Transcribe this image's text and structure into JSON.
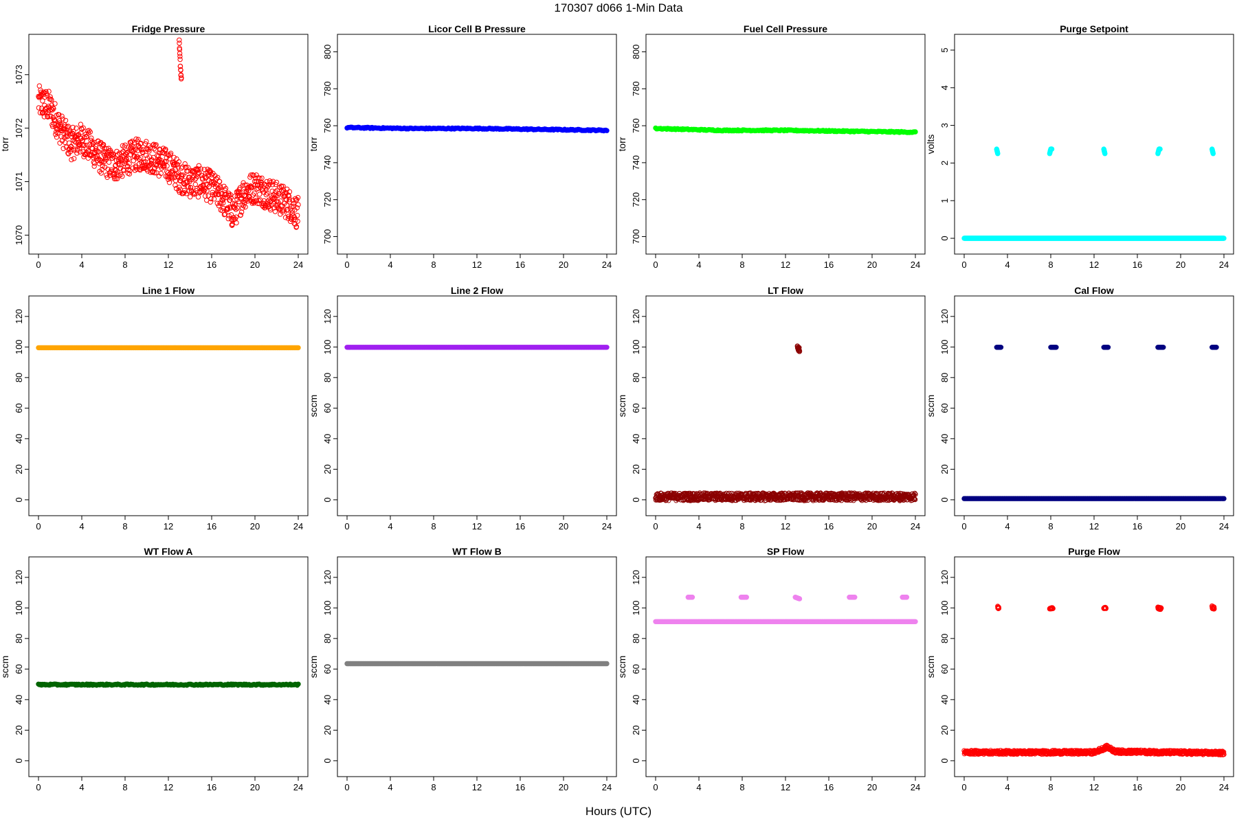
{
  "page": {
    "title": "170307   d066   1-Min Data",
    "xlabel": "Hours (UTC)"
  },
  "chart_data": [
    {
      "type": "scatter",
      "title": "Fridge Pressure",
      "xlabel": "",
      "ylabel": "torr",
      "color": "#FF0000",
      "marker": "open-circle",
      "xlim": [
        0,
        24
      ],
      "ylim": [
        1069.8,
        1073.6
      ],
      "xticks": [
        0,
        4,
        8,
        12,
        16,
        20,
        24
      ],
      "yticks": [
        1070,
        1071,
        1072,
        1073
      ],
      "series": [
        {
          "points": [
            [
              0,
              1072.5
            ],
            [
              1,
              1072.4
            ],
            [
              2,
              1072.0
            ],
            [
              3,
              1071.7
            ],
            [
              4,
              1071.8
            ],
            [
              5,
              1071.6
            ],
            [
              6,
              1071.4
            ],
            [
              7,
              1071.3
            ],
            [
              8,
              1071.4
            ],
            [
              9,
              1071.5
            ],
            [
              10,
              1071.5
            ],
            [
              11,
              1071.4
            ],
            [
              12,
              1071.3
            ],
            [
              13,
              1071.1
            ],
            [
              14,
              1071.0
            ],
            [
              15,
              1071.0
            ],
            [
              16,
              1070.9
            ],
            [
              17,
              1070.7
            ],
            [
              18,
              1070.4
            ],
            [
              19,
              1070.8
            ],
            [
              20,
              1070.9
            ],
            [
              21,
              1070.8
            ],
            [
              22,
              1070.7
            ],
            [
              23,
              1070.6
            ],
            [
              24,
              1070.4
            ]
          ],
          "spread": 0.3
        },
        {
          "points": [
            [
              13.0,
              1073.6
            ],
            [
              13.1,
              1073.2
            ],
            [
              13.2,
              1072.9
            ]
          ],
          "spread": 0.05
        }
      ]
    },
    {
      "type": "scatter",
      "title": "Licor Cell B Pressure",
      "xlabel": "",
      "ylabel": "torr",
      "color": "#0000FF",
      "marker": "filled-circle",
      "xlim": [
        0,
        24
      ],
      "ylim": [
        695,
        805
      ],
      "xticks": [
        0,
        4,
        8,
        12,
        16,
        20,
        24
      ],
      "yticks": [
        700,
        720,
        740,
        760,
        780,
        800
      ],
      "series": [
        {
          "points": [
            [
              0,
              759
            ],
            [
              6,
              758.5
            ],
            [
              12,
              758.5
            ],
            [
              18,
              758
            ],
            [
              24,
              757.5
            ]
          ],
          "spread": 0.3
        }
      ]
    },
    {
      "type": "scatter",
      "title": "Fuel Cell Pressure",
      "xlabel": "",
      "ylabel": "torr",
      "color": "#00FF00",
      "marker": "filled-circle",
      "xlim": [
        0,
        24
      ],
      "ylim": [
        695,
        805
      ],
      "xticks": [
        0,
        4,
        8,
        12,
        16,
        20,
        24
      ],
      "yticks": [
        700,
        720,
        740,
        760,
        780,
        800
      ],
      "series": [
        {
          "points": [
            [
              0,
              758.5
            ],
            [
              6,
              757.5
            ],
            [
              12,
              757.5
            ],
            [
              18,
              757
            ],
            [
              24,
              756.5
            ]
          ],
          "spread": 0.3
        }
      ]
    },
    {
      "type": "scatter",
      "title": "Purge Setpoint",
      "xlabel": "",
      "ylabel": "volts",
      "color": "#00FFFF",
      "marker": "open-circle",
      "xlim": [
        0,
        24
      ],
      "ylim": [
        -0.2,
        5.2
      ],
      "xticks": [
        0,
        4,
        8,
        12,
        16,
        20,
        24
      ],
      "yticks": [
        0,
        1,
        2,
        3,
        4,
        5
      ],
      "series": [
        {
          "points": [
            [
              0,
              0
            ],
            [
              24,
              0
            ]
          ],
          "spread": 0
        },
        {
          "points": [
            [
              3.0,
              2.37
            ],
            [
              3.1,
              2.25
            ]
          ],
          "spread": 0
        },
        {
          "points": [
            [
              7.9,
              2.25
            ],
            [
              8.0,
              2.37
            ],
            [
              8.1,
              2.37
            ]
          ],
          "spread": 0
        },
        {
          "points": [
            [
              12.9,
              2.37
            ],
            [
              13.0,
              2.25
            ]
          ],
          "spread": 0
        },
        {
          "points": [
            [
              17.9,
              2.25
            ],
            [
              18.0,
              2.37
            ],
            [
              18.1,
              2.37
            ]
          ],
          "spread": 0
        },
        {
          "points": [
            [
              22.9,
              2.37
            ],
            [
              23.0,
              2.25
            ]
          ],
          "spread": 0
        }
      ]
    },
    {
      "type": "scatter",
      "title": "Line 1 Flow",
      "xlabel": "",
      "ylabel": "",
      "color": "#FFA500",
      "marker": "filled-circle",
      "xlim": [
        0,
        24
      ],
      "ylim": [
        -5,
        128
      ],
      "xticks": [
        0,
        4,
        8,
        12,
        16,
        20,
        24
      ],
      "yticks": [
        0,
        20,
        40,
        60,
        80,
        100,
        120
      ],
      "series": [
        {
          "points": [
            [
              0,
              99.5
            ],
            [
              24,
              99.5
            ]
          ],
          "spread": 0
        }
      ]
    },
    {
      "type": "scatter",
      "title": "Line 2 Flow",
      "xlabel": "",
      "ylabel": "sccm",
      "color": "#A020F0",
      "marker": "filled-circle",
      "xlim": [
        0,
        24
      ],
      "ylim": [
        -5,
        128
      ],
      "xticks": [
        0,
        4,
        8,
        12,
        16,
        20,
        24
      ],
      "yticks": [
        0,
        20,
        40,
        60,
        80,
        100,
        120
      ],
      "series": [
        {
          "points": [
            [
              0,
              99.8
            ],
            [
              24,
              99.8
            ]
          ],
          "spread": 0
        }
      ]
    },
    {
      "type": "scatter",
      "title": "LT Flow",
      "xlabel": "",
      "ylabel": "sccm",
      "color": "#8B0000",
      "marker": "open-circle",
      "xlim": [
        0,
        24
      ],
      "ylim": [
        -5,
        128
      ],
      "xticks": [
        0,
        4,
        8,
        12,
        16,
        20,
        24
      ],
      "yticks": [
        0,
        20,
        40,
        60,
        80,
        100,
        120
      ],
      "series": [
        {
          "points": [
            [
              0,
              2
            ],
            [
              24,
              2
            ]
          ],
          "spread": 2.5
        },
        {
          "points": [
            [
              13.1,
              101
            ],
            [
              13.2,
              99
            ],
            [
              13.3,
              98
            ]
          ],
          "spread": 1.5
        }
      ]
    },
    {
      "type": "scatter",
      "title": "Cal Flow",
      "xlabel": "",
      "ylabel": "sccm",
      "color": "#000080",
      "marker": "filled-circle",
      "xlim": [
        0,
        24
      ],
      "ylim": [
        -5,
        128
      ],
      "xticks": [
        0,
        4,
        8,
        12,
        16,
        20,
        24
      ],
      "yticks": [
        0,
        20,
        40,
        60,
        80,
        100,
        120
      ],
      "series": [
        {
          "points": [
            [
              0,
              0.8
            ],
            [
              24,
              0.8
            ]
          ],
          "spread": 0
        },
        {
          "points": [
            [
              3.0,
              99.8
            ],
            [
              3.4,
              99.8
            ]
          ],
          "spread": 0
        },
        {
          "points": [
            [
              8.0,
              99.8
            ],
            [
              8.5,
              99.8
            ]
          ],
          "spread": 0
        },
        {
          "points": [
            [
              12.9,
              99.8
            ],
            [
              13.3,
              99.8
            ]
          ],
          "spread": 0
        },
        {
          "points": [
            [
              17.9,
              99.8
            ],
            [
              18.4,
              99.8
            ]
          ],
          "spread": 0
        },
        {
          "points": [
            [
              22.9,
              99.8
            ],
            [
              23.3,
              99.8
            ]
          ],
          "spread": 0
        }
      ]
    },
    {
      "type": "scatter",
      "title": "WT Flow A",
      "xlabel": "",
      "ylabel": "sccm",
      "color": "#006400",
      "marker": "filled-circle",
      "xlim": [
        0,
        24
      ],
      "ylim": [
        -5,
        128
      ],
      "xticks": [
        0,
        4,
        8,
        12,
        16,
        20,
        24
      ],
      "yticks": [
        0,
        20,
        40,
        60,
        80,
        100,
        120
      ],
      "series": [
        {
          "points": [
            [
              0,
              49.8
            ],
            [
              24,
              49.8
            ]
          ],
          "spread": 0.4
        }
      ]
    },
    {
      "type": "scatter",
      "title": "WT Flow B",
      "xlabel": "",
      "ylabel": "sccm",
      "color": "#808080",
      "marker": "filled-circle",
      "xlim": [
        0,
        24
      ],
      "ylim": [
        -5,
        128
      ],
      "xticks": [
        0,
        4,
        8,
        12,
        16,
        20,
        24
      ],
      "yticks": [
        0,
        20,
        40,
        60,
        80,
        100,
        120
      ],
      "series": [
        {
          "points": [
            [
              0,
              63.5
            ],
            [
              24,
              63.5
            ]
          ],
          "spread": 0
        }
      ]
    },
    {
      "type": "scatter",
      "title": "SP Flow",
      "xlabel": "",
      "ylabel": "sccm",
      "color": "#EE82EE",
      "marker": "filled-circle",
      "xlim": [
        0,
        24
      ],
      "ylim": [
        -5,
        128
      ],
      "xticks": [
        0,
        4,
        8,
        12,
        16,
        20,
        24
      ],
      "yticks": [
        0,
        20,
        40,
        60,
        80,
        100,
        120
      ],
      "series": [
        {
          "points": [
            [
              0,
              91
            ],
            [
              24,
              91
            ]
          ],
          "spread": 0
        },
        {
          "points": [
            [
              3.0,
              107
            ],
            [
              3.4,
              107
            ]
          ],
          "spread": 0
        },
        {
          "points": [
            [
              7.9,
              107
            ],
            [
              8.4,
              107
            ]
          ],
          "spread": 0
        },
        {
          "points": [
            [
              12.9,
              107
            ],
            [
              13.3,
              106
            ]
          ],
          "spread": 0
        },
        {
          "points": [
            [
              17.9,
              107
            ],
            [
              18.4,
              107
            ]
          ],
          "spread": 0
        },
        {
          "points": [
            [
              22.8,
              107
            ],
            [
              23.2,
              107
            ]
          ],
          "spread": 0
        }
      ]
    },
    {
      "type": "scatter",
      "title": "Purge Flow",
      "xlabel": "",
      "ylabel": "sccm",
      "color": "#FF0000",
      "marker": "open-circle",
      "xlim": [
        0,
        24
      ],
      "ylim": [
        -5,
        128
      ],
      "xticks": [
        0,
        4,
        8,
        12,
        16,
        20,
        24
      ],
      "yticks": [
        0,
        20,
        40,
        60,
        80,
        100,
        120
      ],
      "series": [
        {
          "points": [
            [
              0,
              5.5
            ],
            [
              12,
              5.5
            ],
            [
              13.2,
              9
            ],
            [
              14,
              6
            ],
            [
              24,
              5
            ]
          ],
          "spread": 1.2
        },
        {
          "points": [
            [
              3.1,
              100.5
            ],
            [
              3.2,
              99.8
            ]
          ],
          "spread": 0.6
        },
        {
          "points": [
            [
              7.9,
              99.8
            ],
            [
              8.2,
              99.8
            ]
          ],
          "spread": 0.4
        },
        {
          "points": [
            [
              12.9,
              100
            ],
            [
              13.1,
              100
            ]
          ],
          "spread": 0.4
        },
        {
          "points": [
            [
              17.9,
              100
            ],
            [
              18.2,
              99.5
            ]
          ],
          "spread": 0.6
        },
        {
          "points": [
            [
              22.9,
              100.5
            ],
            [
              23.1,
              99.8
            ]
          ],
          "spread": 0.8
        }
      ]
    }
  ]
}
